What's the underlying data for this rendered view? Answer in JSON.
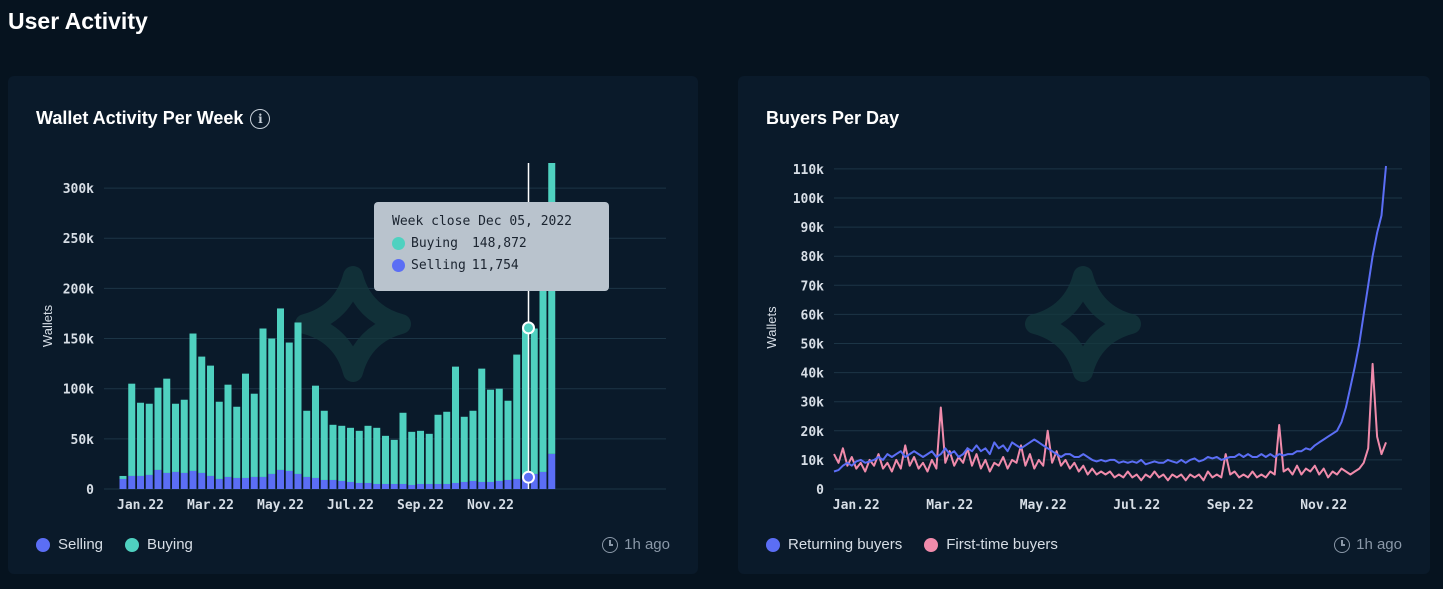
{
  "page": {
    "title": "User Activity"
  },
  "colors": {
    "buying": "#4fd1c0",
    "selling": "#5b6ef5",
    "returning": "#5b6ef5",
    "first_time": "#f08bab"
  },
  "left_card": {
    "title": "Wallet Activity Per Week",
    "info_icon": "info-icon",
    "legend": [
      "Selling",
      "Buying"
    ],
    "updated": "1h ago",
    "tooltip": {
      "title": "Week close Dec 05, 2022",
      "rows": [
        {
          "label": "Buying",
          "value": "148,872"
        },
        {
          "label": "Selling",
          "value": "11,754"
        }
      ]
    }
  },
  "right_card": {
    "title": "Buyers Per Day",
    "legend": [
      "Returning buyers",
      "First-time buyers"
    ],
    "updated": "1h ago"
  },
  "chart_data": [
    {
      "type": "bar",
      "stacked": true,
      "title": "Wallet Activity Per Week",
      "ylabel": "Wallets",
      "ylim": [
        0,
        325000
      ],
      "yticks": [
        0,
        50000,
        100000,
        150000,
        200000,
        250000,
        300000
      ],
      "ytick_labels": [
        "0",
        "50k",
        "100k",
        "150k",
        "200k",
        "250k",
        "300k"
      ],
      "xtick_labels": [
        "Jan.22",
        "Mar.22",
        "May.22",
        "Jul.22",
        "Sep.22",
        "Nov.22"
      ],
      "xtick_index": [
        2,
        10,
        18,
        26,
        34,
        42
      ],
      "grid": true,
      "legend_position": "bottom-left",
      "highlight_index": 46,
      "series": [
        {
          "name": "Selling",
          "values": [
            10000,
            13000,
            13000,
            14000,
            19000,
            16000,
            17000,
            16000,
            18000,
            16000,
            13000,
            10000,
            12000,
            11000,
            11000,
            12000,
            12000,
            15000,
            19000,
            18000,
            15000,
            12000,
            11000,
            9000,
            9000,
            8000,
            7000,
            6000,
            6000,
            5000,
            5000,
            5000,
            5000,
            4000,
            5000,
            5000,
            5000,
            5000,
            6000,
            7000,
            8000,
            7000,
            7000,
            8000,
            9000,
            10000,
            11754,
            15000,
            17000,
            35000
          ]
        },
        {
          "name": "Buying",
          "values": [
            3000,
            92000,
            73000,
            71000,
            82000,
            94000,
            68000,
            73000,
            137000,
            116000,
            110000,
            77000,
            92000,
            71000,
            104000,
            83000,
            148000,
            135000,
            161000,
            128000,
            151000,
            66000,
            92000,
            69000,
            55000,
            55000,
            54000,
            52000,
            57000,
            56000,
            48000,
            44000,
            71000,
            53000,
            53000,
            50000,
            69000,
            72000,
            116000,
            65000,
            70000,
            113000,
            92000,
            92000,
            79000,
            124000,
            148872,
            145000,
            225000,
            290000
          ]
        }
      ]
    },
    {
      "type": "line",
      "title": "Buyers Per Day",
      "ylabel": "Wallets",
      "ylim": [
        0,
        111000
      ],
      "yticks": [
        0,
        10000,
        20000,
        30000,
        40000,
        50000,
        60000,
        70000,
        80000,
        90000,
        100000,
        110000
      ],
      "ytick_labels": [
        "0",
        "10k",
        "20k",
        "30k",
        "40k",
        "50k",
        "60k",
        "70k",
        "80k",
        "90k",
        "100k",
        "110k"
      ],
      "xtick_labels": [
        "Jan.22",
        "Mar.22",
        "May.22",
        "Jul.22",
        "Sep.22",
        "Nov.22"
      ],
      "xtick_index": [
        5,
        26,
        47,
        68,
        89,
        110
      ],
      "grid": true,
      "legend_position": "bottom-left",
      "series": [
        {
          "name": "Returning buyers",
          "values": [
            6000,
            6500,
            8000,
            9000,
            8000,
            9500,
            10000,
            9000,
            9500,
            10000,
            11000,
            10000,
            12000,
            11000,
            12000,
            13000,
            11000,
            12000,
            13000,
            12000,
            11000,
            12000,
            13000,
            11000,
            12000,
            14000,
            12000,
            13000,
            11000,
            12000,
            14000,
            13000,
            15000,
            13000,
            14000,
            12000,
            16000,
            14000,
            15000,
            13000,
            16000,
            15000,
            14000,
            15000,
            16000,
            17000,
            16000,
            15000,
            14000,
            13000,
            12000,
            11000,
            12000,
            12000,
            11000,
            11000,
            12000,
            11000,
            10000,
            9500,
            10000,
            9500,
            10000,
            10000,
            9000,
            9500,
            9000,
            9500,
            9000,
            10000,
            8500,
            9000,
            9500,
            9000,
            9000,
            10000,
            9500,
            9000,
            10000,
            9000,
            10000,
            10500,
            9500,
            10000,
            11000,
            10500,
            11000,
            10000,
            10500,
            11000,
            11000,
            12000,
            11000,
            12000,
            11000,
            11000,
            12000,
            11000,
            12000,
            11000,
            12000,
            11500,
            12000,
            12000,
            13000,
            13000,
            14000,
            13500,
            15000,
            16000,
            17000,
            18000,
            19000,
            20000,
            23000,
            28000,
            35000,
            42000,
            50000,
            60000,
            70000,
            80000,
            88000,
            94000,
            111000
          ]
        },
        {
          "name": "First-time buyers",
          "values": [
            12000,
            9000,
            14000,
            8000,
            11000,
            7000,
            9000,
            6000,
            10000,
            8000,
            12000,
            7000,
            9000,
            6000,
            10000,
            7000,
            15000,
            8000,
            11000,
            7000,
            9000,
            6000,
            10000,
            7000,
            28000,
            9000,
            13000,
            8000,
            11000,
            9000,
            14000,
            8000,
            12000,
            7000,
            10000,
            6000,
            9000,
            8000,
            11000,
            7000,
            10000,
            9000,
            15000,
            8000,
            12000,
            7000,
            10000,
            8000,
            20000,
            9000,
            13000,
            8000,
            10000,
            7000,
            9000,
            6000,
            8000,
            5000,
            7000,
            5000,
            6000,
            5000,
            6000,
            4000,
            5000,
            4000,
            6000,
            4000,
            5000,
            3000,
            5000,
            4000,
            6000,
            4000,
            5000,
            3000,
            5000,
            4000,
            5000,
            3000,
            5000,
            4000,
            5000,
            3000,
            6000,
            4000,
            5000,
            4000,
            12000,
            5000,
            6000,
            4000,
            5000,
            4000,
            6000,
            4000,
            5000,
            4000,
            6000,
            5000,
            22000,
            6000,
            7000,
            5000,
            8000,
            5000,
            7000,
            6000,
            8000,
            5000,
            7000,
            4000,
            6000,
            5000,
            7000,
            6000,
            5000,
            6000,
            7000,
            9000,
            14000,
            43000,
            18000,
            12000,
            16000
          ]
        }
      ]
    }
  ]
}
